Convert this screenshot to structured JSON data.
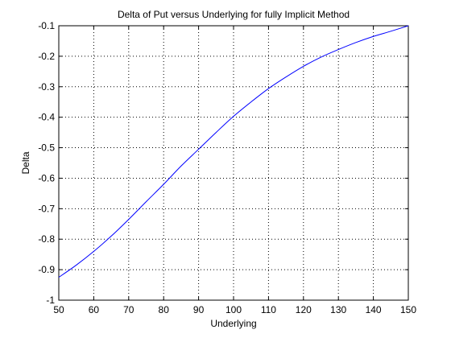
{
  "chart_data": {
    "type": "line",
    "title": "Delta of Put versus Underlying for fully Implicit Method",
    "xlabel": "Underlying",
    "ylabel": "Delta",
    "xlim": [
      50,
      150
    ],
    "ylim": [
      -1,
      -0.1
    ],
    "xticks": [
      50,
      60,
      70,
      80,
      90,
      100,
      110,
      120,
      130,
      140,
      150
    ],
    "xtick_labels": [
      "50",
      "60",
      "70",
      "80",
      "90",
      "100",
      "110",
      "120",
      "130",
      "140",
      "150"
    ],
    "yticks": [
      -1,
      -0.9,
      -0.8,
      -0.7,
      -0.6,
      -0.5,
      -0.4,
      -0.3,
      -0.2,
      -0.1
    ],
    "ytick_labels": [
      "-1",
      "-0.9",
      "-0.8",
      "-0.7",
      "-0.6",
      "-0.5",
      "-0.4",
      "-0.3",
      "-0.2",
      "-0.1"
    ],
    "grid": true,
    "legend": false,
    "series_color": "#0000ff",
    "series": [
      {
        "x": [
          50,
          55,
          60,
          65,
          70,
          75,
          80,
          85,
          90,
          95,
          100,
          105,
          110,
          115,
          120,
          125,
          130,
          135,
          140,
          145,
          150
        ],
        "y": [
          -0.925,
          -0.885,
          -0.84,
          -0.79,
          -0.735,
          -0.677,
          -0.62,
          -0.56,
          -0.505,
          -0.45,
          -0.397,
          -0.35,
          -0.306,
          -0.268,
          -0.233,
          -0.203,
          -0.178,
          -0.155,
          -0.135,
          -0.118,
          -0.1
        ]
      }
    ]
  }
}
